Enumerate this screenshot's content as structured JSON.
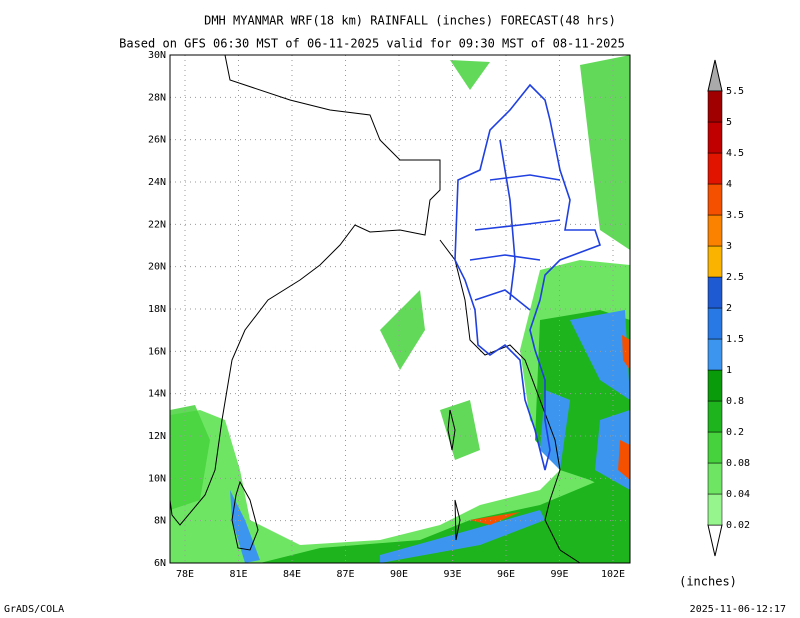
{
  "header": {
    "title": "DMH MYANMAR WRF(18 km) RAINFALL (inches) FORECAST(48 hrs)",
    "subtitle": "Based on GFS 06:30 MST of 06-11-2025 valid for 09:30 MST of 08-11-2025"
  },
  "map": {
    "lat_ticks": [
      {
        "value": 6,
        "label": "6N"
      },
      {
        "value": 8,
        "label": "8N"
      },
      {
        "value": 10,
        "label": "10N"
      },
      {
        "value": 12,
        "label": "12N"
      },
      {
        "value": 14,
        "label": "14N"
      },
      {
        "value": 16,
        "label": "16N"
      },
      {
        "value": 18,
        "label": "18N"
      },
      {
        "value": 20,
        "label": "20N"
      },
      {
        "value": 22,
        "label": "22N"
      },
      {
        "value": 24,
        "label": "24N"
      },
      {
        "value": 26,
        "label": "26N"
      },
      {
        "value": 28,
        "label": "28N"
      },
      {
        "value": 30,
        "label": "30N"
      }
    ],
    "lon_ticks": [
      {
        "value": 78,
        "label": "78E"
      },
      {
        "value": 81,
        "label": "81E"
      },
      {
        "value": 84,
        "label": "84E"
      },
      {
        "value": 87,
        "label": "87E"
      },
      {
        "value": 90,
        "label": "90E"
      },
      {
        "value": 93,
        "label": "93E"
      },
      {
        "value": 96,
        "label": "96E"
      },
      {
        "value": 99,
        "label": "99E"
      },
      {
        "value": 102,
        "label": "102E"
      }
    ]
  },
  "colorbar": {
    "levels": [
      0.02,
      0.04,
      0.08,
      0.2,
      0.8,
      1,
      1.5,
      2,
      2.5,
      3,
      3.5,
      4,
      4.5,
      5,
      5.5
    ],
    "colors": [
      "#96f58c",
      "#6ee664",
      "#46d23c",
      "#1eb41e",
      "#0a9b0a",
      "#3c96f0",
      "#2878e6",
      "#1e5ad2",
      "#fab400",
      "#fa8200",
      "#f55000",
      "#e11400",
      "#c00000",
      "#a00000"
    ],
    "unit": "(inches)"
  },
  "footer": {
    "left": "GrADS/COLA",
    "right": "2025-11-06-12:17"
  }
}
